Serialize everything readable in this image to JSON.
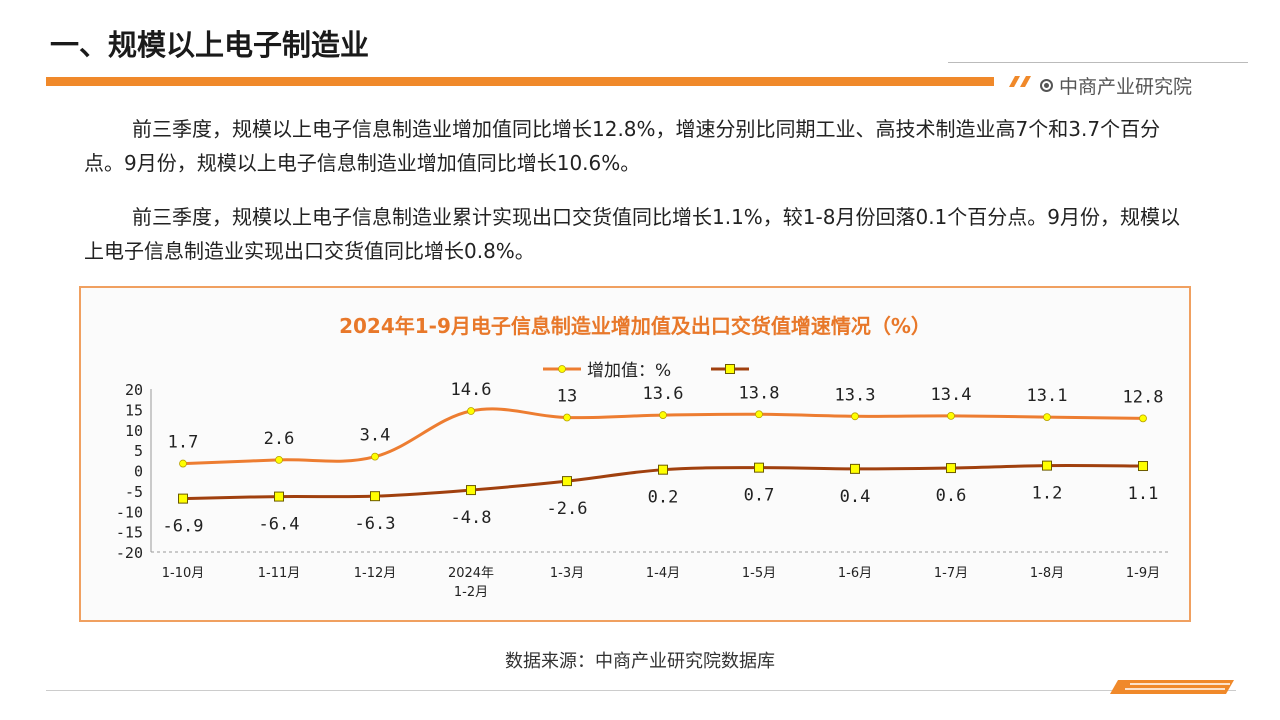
{
  "header": {
    "title": "一、规模以上电子制造业",
    "logo_text": "中商产业研究院"
  },
  "paragraphs": [
    "前三季度，规模以上电子信息制造业增加值同比增长12.8%，增速分别比同期工业、高技术制造业高7个和3.7个百分点。9月份，规模以上电子信息制造业增加值同比增长10.6%。",
    "前三季度，规模以上电子信息制造业累计实现出口交货值同比增长1.1%，较1-8月份回落0.1个百分点。9月份，规模以上电子信息制造业实现出口交货值同比增长0.8%。"
  ],
  "footer": {
    "source": "数据来源：中商产业研究院数据库"
  },
  "colors": {
    "accent": "#f0892a",
    "series1": "#ed7d31",
    "series2": "#a0400e",
    "marker_fill": "#ffff00"
  },
  "chart_data": {
    "type": "line",
    "title": "2024年1-9月电子信息制造业增加值及出口交货值增速情况（%）",
    "categories": [
      "1-10月",
      "1-11月",
      "1-12月",
      "2024年\n1-2月",
      "1-3月",
      "1-4月",
      "1-5月",
      "1-6月",
      "1-7月",
      "1-8月",
      "1-9月"
    ],
    "series": [
      {
        "name": "增加值：%",
        "values": [
          1.7,
          2.6,
          3.4,
          14.6,
          13,
          13.6,
          13.8,
          13.3,
          13.4,
          13.1,
          12.8
        ]
      },
      {
        "name": "",
        "values": [
          -6.9,
          -6.4,
          -6.3,
          -4.8,
          -2.6,
          0.2,
          0.7,
          0.4,
          0.6,
          1.2,
          1.1
        ]
      }
    ],
    "ylim": [
      -20,
      20
    ],
    "yticks": [
      20,
      15,
      10,
      5,
      0,
      -5,
      -10,
      -15,
      -20
    ],
    "legend": "top-center",
    "xlabel": "",
    "ylabel": ""
  }
}
